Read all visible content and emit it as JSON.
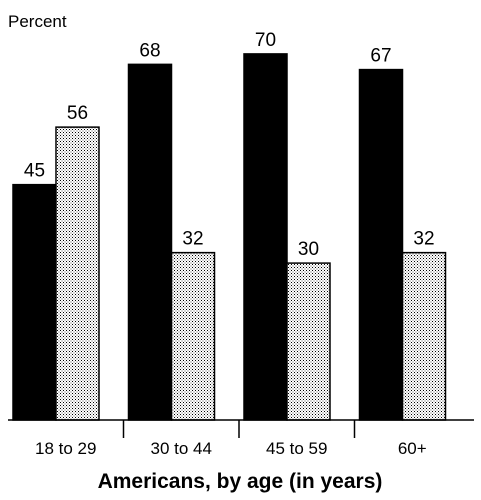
{
  "chart_data": {
    "type": "bar",
    "ylabel": "Percent",
    "xlabel": "Americans, by age (in years)",
    "categories": [
      "18 to 29",
      "30 to 44",
      "45 to 59",
      "60+"
    ],
    "series": [
      {
        "values": [
          45,
          68,
          70,
          67
        ],
        "color": "#000000",
        "pattern": "solid"
      },
      {
        "values": [
          56,
          32,
          30,
          32
        ],
        "color": "#d9d9d9",
        "pattern": "dotted-stipple"
      }
    ],
    "data_labels": true,
    "ylim": [
      0,
      70
    ],
    "grid": false,
    "legend": "none"
  }
}
